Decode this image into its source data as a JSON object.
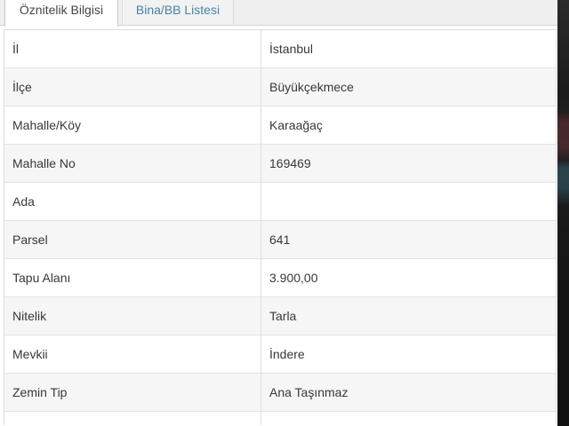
{
  "tabs": [
    {
      "label": "Öznitelik Bilgisi",
      "active": true
    },
    {
      "label": "Bina/BB Listesi",
      "active": false
    }
  ],
  "table": {
    "rows": [
      {
        "label": "İl",
        "value": "İstanbul"
      },
      {
        "label": "İlçe",
        "value": "Büyükçekmece"
      },
      {
        "label": "Mahalle/Köy",
        "value": "Karaağaç"
      },
      {
        "label": "Mahalle No",
        "value": "169469"
      },
      {
        "label": "Ada",
        "value": ""
      },
      {
        "label": "Parsel",
        "value": "641"
      },
      {
        "label": "Tapu Alanı",
        "value": "3.900,00"
      },
      {
        "label": "Nitelik",
        "value": "Tarla"
      },
      {
        "label": "Mevkii",
        "value": "İndere"
      },
      {
        "label": "Zemin Tip",
        "value": "Ana Taşınmaz"
      }
    ]
  },
  "colors": {
    "inactive_tab_link": "#4783a9",
    "active_tab_text": "#454545",
    "row_stripe": "#f6f6f6",
    "table_border": "#dddddd",
    "tabbar_background": "#efefef",
    "map_sliver_base": "#1a1a1a",
    "map_sliver_red": "#49282c",
    "map_sliver_teal": "#29424a"
  }
}
